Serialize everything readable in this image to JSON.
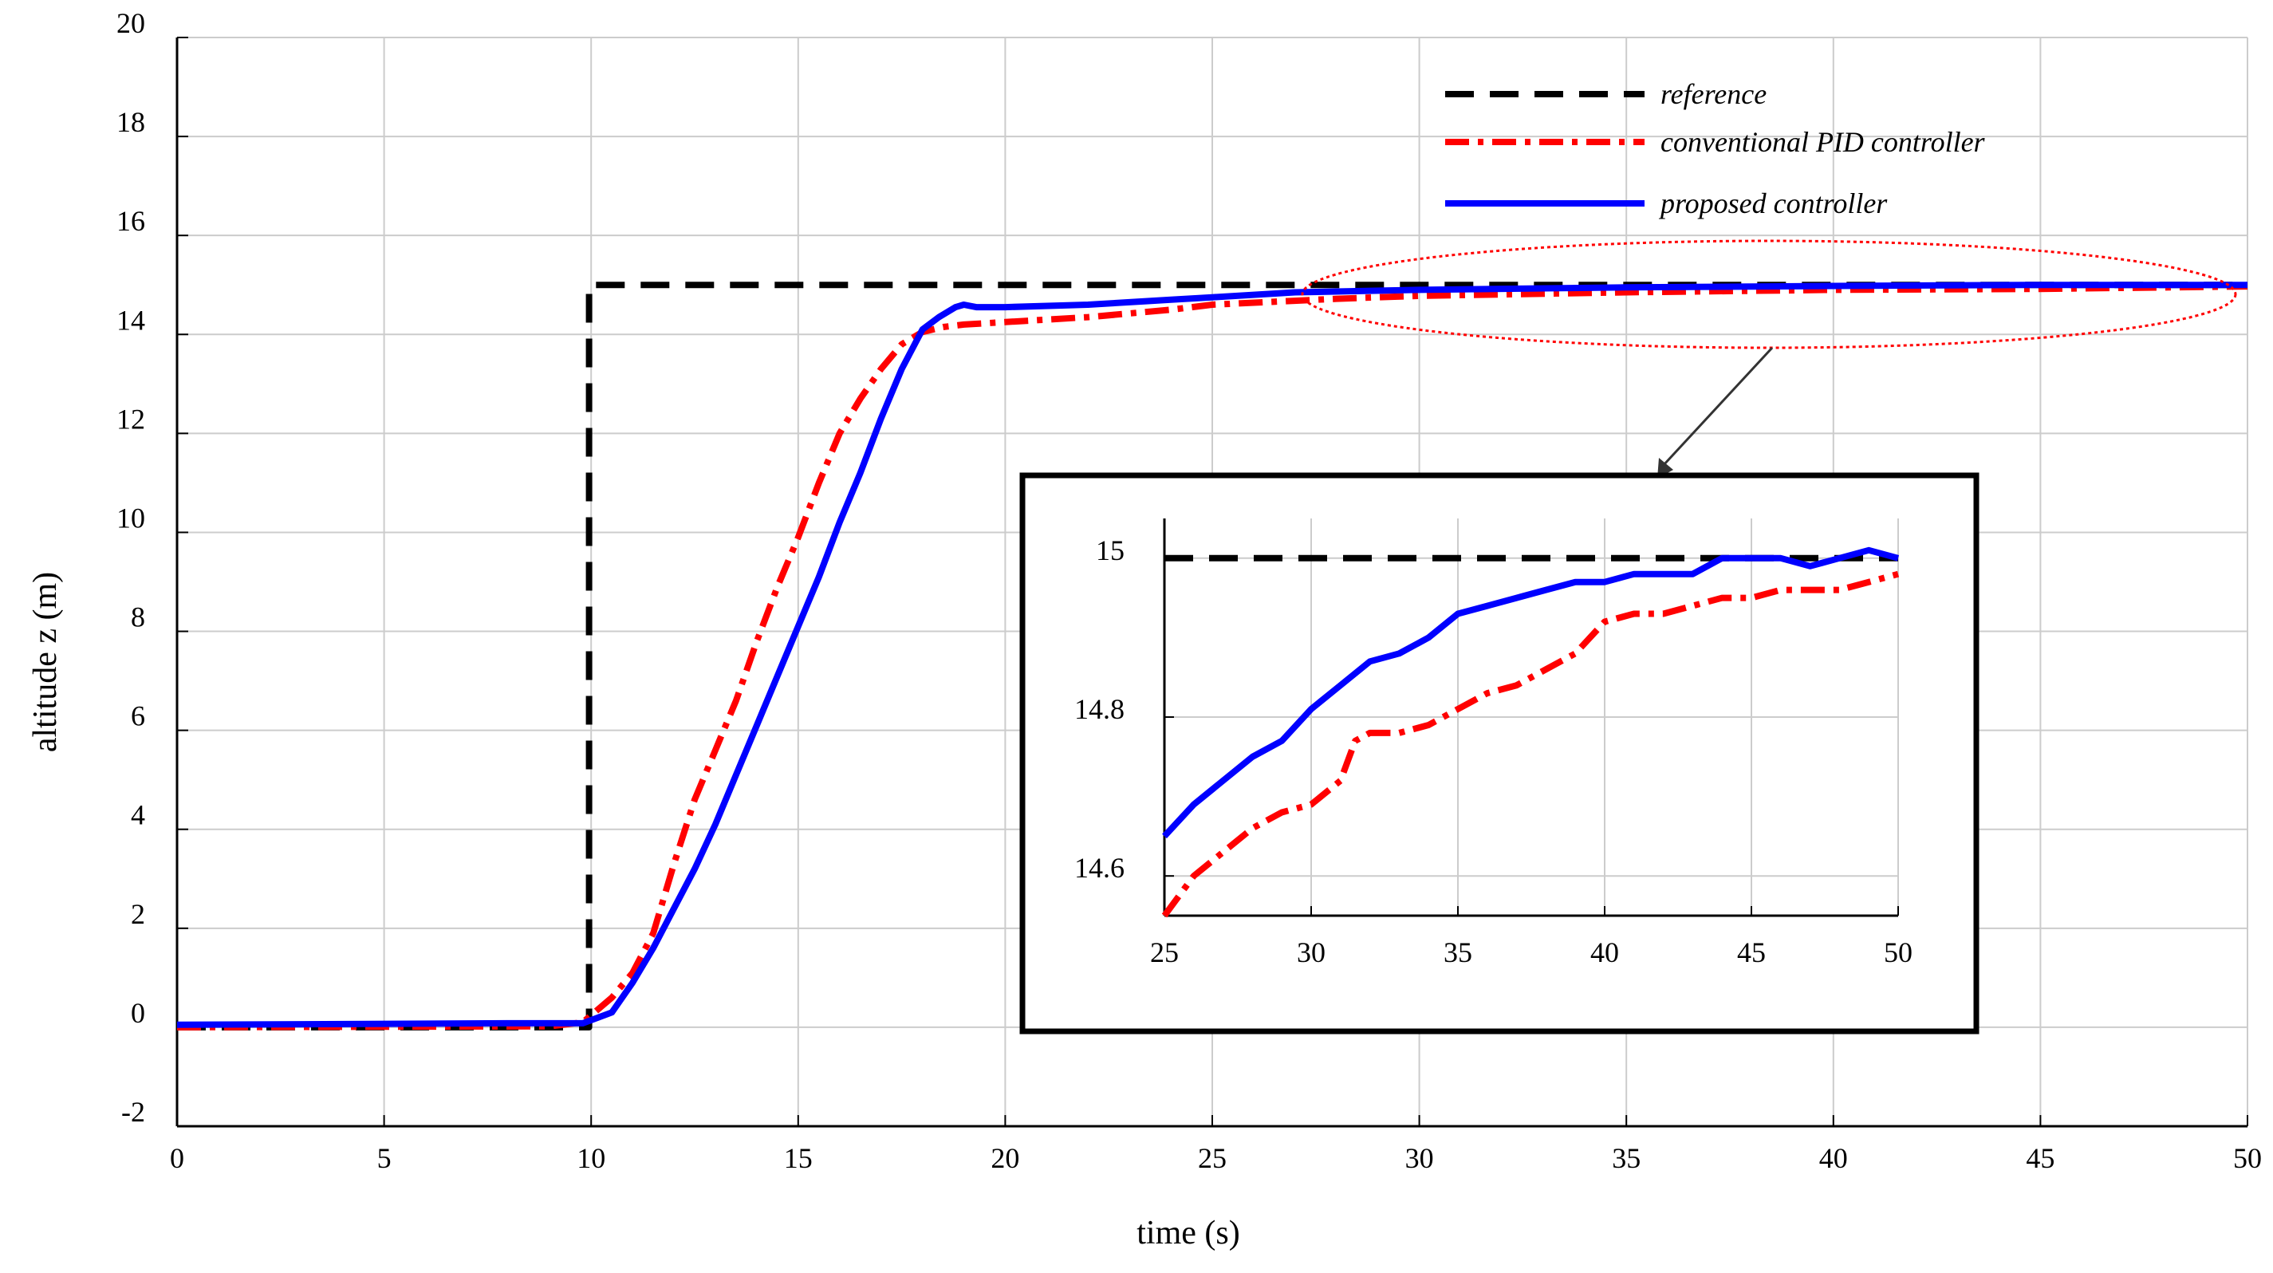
{
  "chart_data": {
    "type": "line",
    "xlabel": "time (s)",
    "ylabel": "altitude z (m)",
    "xlim": [
      0,
      50
    ],
    "ylim": [
      -2,
      20
    ],
    "xticks": [
      0,
      5,
      10,
      15,
      20,
      25,
      30,
      35,
      40,
      45,
      50
    ],
    "yticks": [
      -2,
      0,
      2,
      4,
      6,
      8,
      10,
      12,
      14,
      16,
      18,
      20
    ],
    "grid": true,
    "legend_position": "top-right",
    "series": [
      {
        "name": "reference",
        "color": "#000000",
        "style": "dashed",
        "x": [
          0,
          9.95,
          9.95,
          50
        ],
        "y": [
          0,
          0,
          15,
          15
        ]
      },
      {
        "name": "conventional PID controller",
        "color": "#ff0000",
        "style": "dash-dot",
        "x": [
          0,
          9,
          9.8,
          10.5,
          11,
          11.5,
          12,
          12.5,
          13,
          13.5,
          14,
          14.5,
          15,
          15.5,
          16,
          16.5,
          17,
          17.5,
          18,
          18.5,
          19,
          20,
          22,
          24,
          25,
          28,
          30,
          35,
          40,
          45,
          50
        ],
        "y": [
          0,
          0.02,
          0.1,
          0.6,
          1.1,
          1.9,
          3.3,
          4.6,
          5.6,
          6.6,
          7.8,
          8.9,
          9.9,
          11.0,
          12.0,
          12.7,
          13.3,
          13.8,
          14.05,
          14.15,
          14.2,
          14.25,
          14.35,
          14.5,
          14.6,
          14.72,
          14.78,
          14.85,
          14.9,
          14.92,
          14.97
        ]
      },
      {
        "name": "proposed controller",
        "color": "#0000ff",
        "style": "solid",
        "x": [
          0,
          8,
          9.8,
          10.5,
          11,
          11.5,
          12,
          12.5,
          13,
          13.5,
          14,
          14.5,
          15,
          15.5,
          16,
          16.5,
          17,
          17.5,
          18,
          18.4,
          18.8,
          19,
          19.3,
          20,
          22,
          24,
          25,
          27,
          30,
          35,
          40,
          45,
          50
        ],
        "y": [
          0.05,
          0.08,
          0.08,
          0.3,
          0.9,
          1.6,
          2.4,
          3.2,
          4.1,
          5.1,
          6.1,
          7.1,
          8.1,
          9.1,
          10.2,
          11.2,
          12.3,
          13.3,
          14.1,
          14.35,
          14.55,
          14.6,
          14.55,
          14.55,
          14.6,
          14.7,
          14.75,
          14.85,
          14.9,
          14.95,
          14.98,
          15.0,
          15.0
        ]
      }
    ],
    "legend": [
      "reference",
      "conventional PID controller",
      "proposed controller"
    ],
    "inset": {
      "xlim": [
        25,
        50
      ],
      "ylim": [
        14.55,
        15.05
      ],
      "xticks": [
        25,
        30,
        35,
        40,
        45,
        50
      ],
      "yticks": [
        14.6,
        14.8,
        15
      ],
      "ytick_labels": [
        "14.6",
        "14.8",
        "15"
      ],
      "series": [
        {
          "name": "reference",
          "color": "#000000",
          "style": "dashed",
          "x": [
            25,
            50
          ],
          "y": [
            15.0,
            15.0
          ]
        },
        {
          "name": "conventional PID controller",
          "color": "#ff0000",
          "style": "dash-dot",
          "x": [
            25,
            26,
            27,
            28,
            29,
            30,
            31,
            31.5,
            32,
            33,
            34,
            35,
            36,
            37,
            38,
            39,
            40,
            41,
            42,
            43,
            44,
            45,
            46,
            47,
            48,
            49,
            50
          ],
          "y": [
            14.55,
            14.6,
            14.63,
            14.66,
            14.68,
            14.69,
            14.72,
            14.77,
            14.78,
            14.78,
            14.79,
            14.81,
            14.83,
            14.84,
            14.86,
            14.88,
            14.92,
            14.93,
            14.93,
            14.94,
            14.95,
            14.95,
            14.96,
            14.96,
            14.96,
            14.97,
            14.98
          ]
        },
        {
          "name": "proposed controller",
          "color": "#0000ff",
          "style": "solid",
          "x": [
            25,
            26,
            27,
            28,
            29,
            30,
            31,
            32,
            33,
            34,
            35,
            36,
            37,
            38,
            39,
            40,
            41,
            42,
            43,
            44,
            45,
            46,
            47,
            48,
            49,
            50
          ],
          "y": [
            14.65,
            14.69,
            14.72,
            14.75,
            14.77,
            14.81,
            14.84,
            14.87,
            14.88,
            14.9,
            14.93,
            14.94,
            14.95,
            14.96,
            14.97,
            14.97,
            14.98,
            14.98,
            14.98,
            15.0,
            15.0,
            15.0,
            14.99,
            15.0,
            15.01,
            15.0
          ]
        }
      ]
    }
  }
}
